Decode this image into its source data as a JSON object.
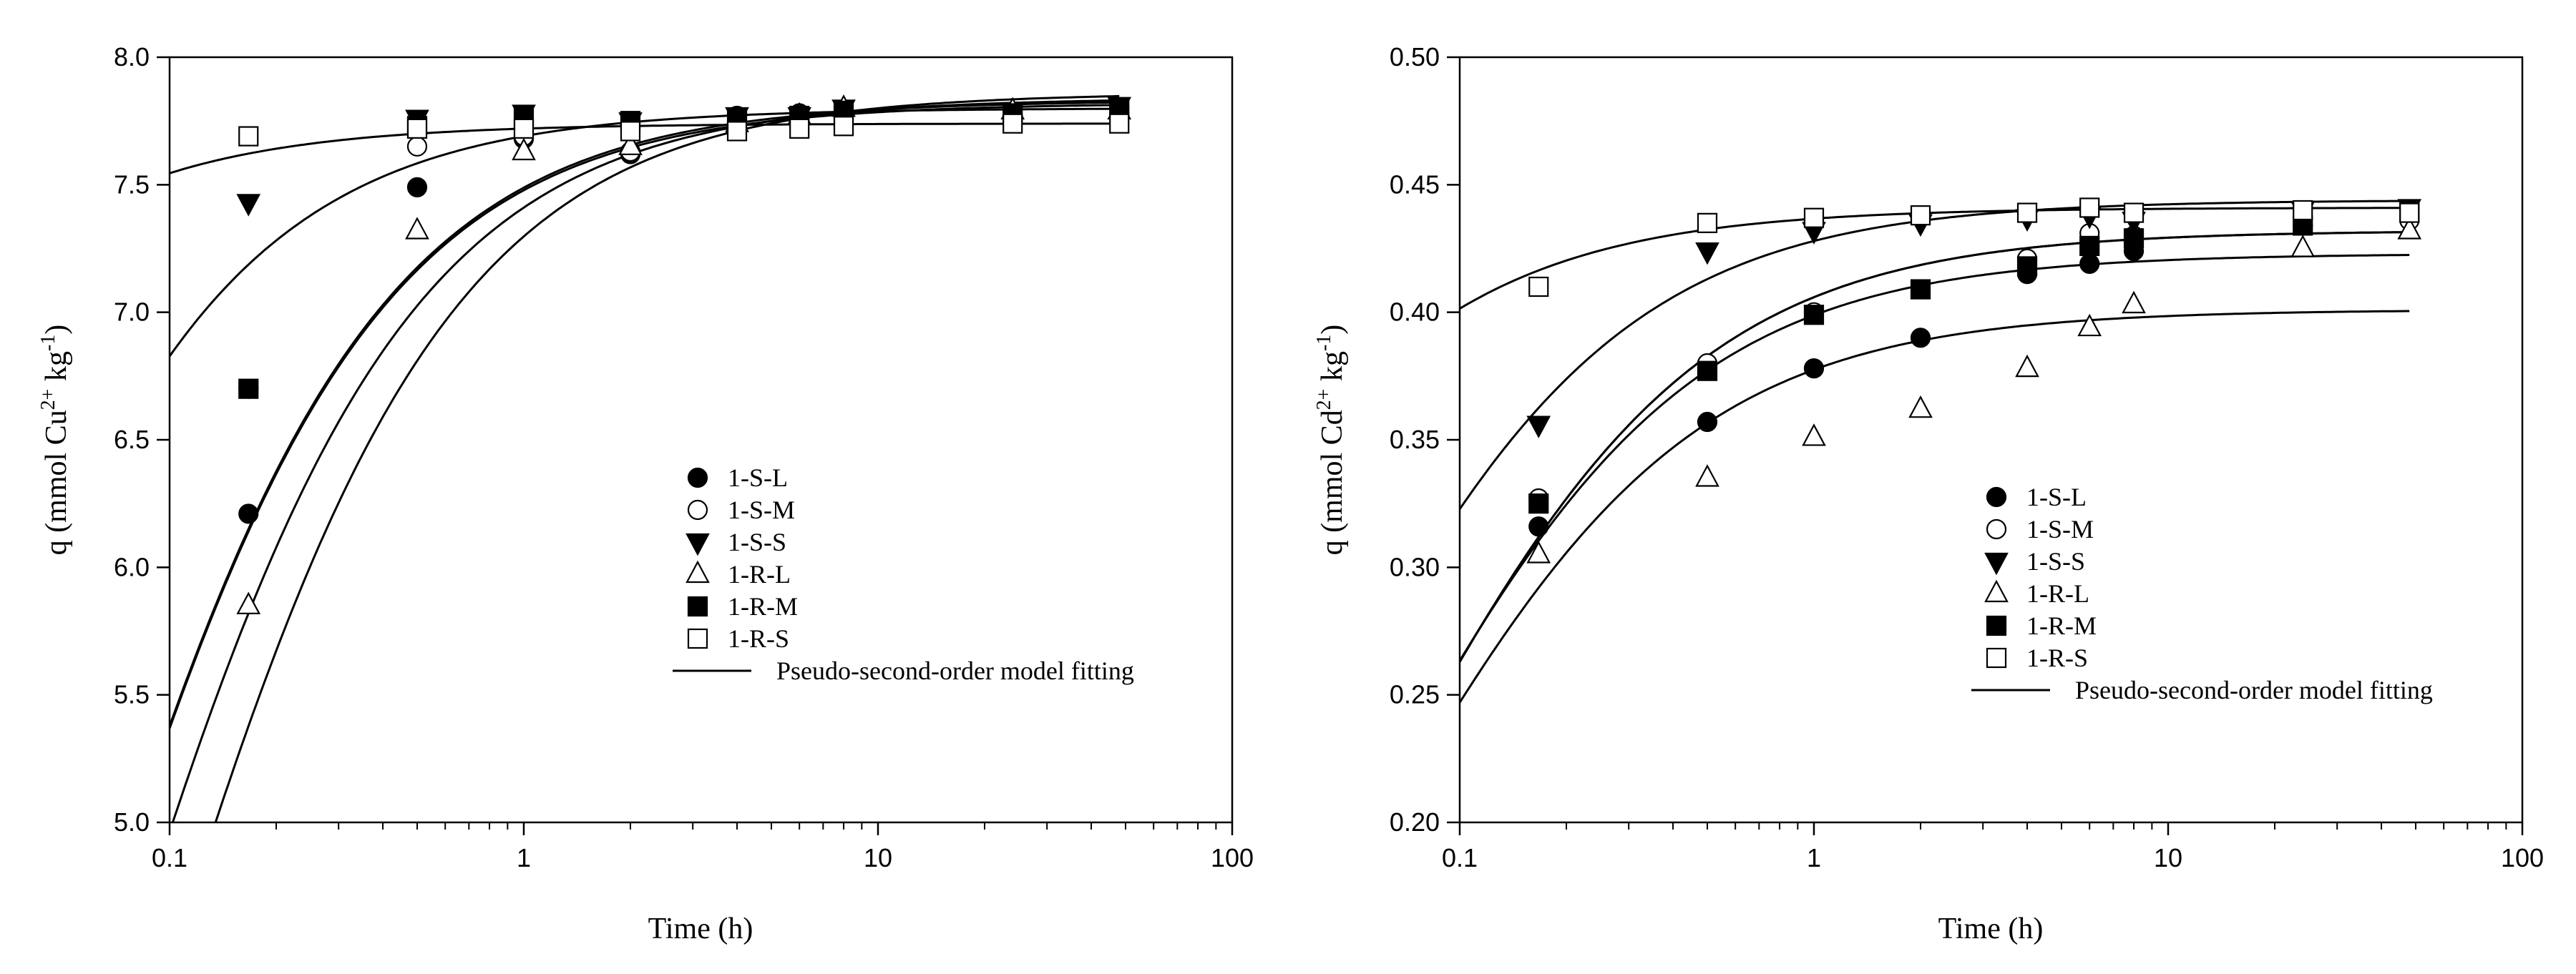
{
  "chart_data": [
    {
      "type": "scatter",
      "xscale": "log",
      "xlim": [
        0.1,
        100
      ],
      "ylim": [
        5.0,
        8.0
      ],
      "xticks": [
        0.1,
        1,
        10,
        100
      ],
      "xtick_labels": [
        "0.1",
        "1",
        "10",
        "100"
      ],
      "yticks": [
        5.0,
        5.5,
        6.0,
        6.5,
        7.0,
        7.5,
        8.0
      ],
      "ytick_labels": [
        "5.0",
        "5.5",
        "6.0",
        "6.5",
        "7.0",
        "7.5",
        "8.0"
      ],
      "xlabel": "Time (h)",
      "ylabel": {
        "pre": "q (mmol Cu",
        "sup1": "2+",
        "mid": " kg",
        "sup2": "-1",
        "post": ")"
      },
      "legend_position": "lower-middle",
      "series": [
        {
          "name": "1-S-L",
          "marker": "filled-circle",
          "x": [
            0.167,
            0.5,
            1,
            2,
            4,
            6,
            8,
            24,
            48
          ],
          "y": [
            6.21,
            7.49,
            7.68,
            7.62,
            7.77,
            7.78,
            7.79,
            7.77,
            7.78
          ],
          "fit": {
            "qe": 7.84,
            "k": 2.2
          }
        },
        {
          "name": "1-S-M",
          "marker": "open-circle",
          "x": [
            0.167,
            0.5,
            1,
            2,
            4,
            6,
            8,
            24,
            48
          ],
          "y": [
            6.7,
            7.65,
            7.69,
            7.63,
            7.75,
            7.76,
            7.79,
            7.77,
            7.8
          ],
          "fit": {
            "qe": 7.82,
            "k": 2.8
          }
        },
        {
          "name": "1-S-S",
          "marker": "filled-triangle-down",
          "x": [
            0.167,
            0.5,
            1,
            2,
            4,
            6,
            8,
            24,
            48
          ],
          "y": [
            7.43,
            7.76,
            7.78,
            7.75,
            7.77,
            7.77,
            7.8,
            7.79,
            7.81
          ],
          "fit": {
            "qe": 7.8,
            "k": 9.0
          }
        },
        {
          "name": "1-R-L",
          "marker": "open-triangle-up",
          "x": [
            0.167,
            0.5,
            1,
            2,
            4,
            6,
            8,
            24,
            48
          ],
          "y": [
            5.85,
            7.32,
            7.63,
            7.65,
            7.74,
            7.77,
            7.8,
            7.79,
            7.79
          ],
          "fit": {
            "qe": 7.86,
            "k": 1.65
          }
        },
        {
          "name": "1-R-M",
          "marker": "filled-square",
          "x": [
            0.167,
            0.5,
            1,
            2,
            4,
            6,
            8,
            24,
            48
          ],
          "y": [
            6.7,
            7.73,
            7.76,
            7.75,
            7.76,
            7.77,
            7.79,
            7.78,
            7.8
          ],
          "fit": {
            "qe": 7.83,
            "k": 2.8
          }
        },
        {
          "name": "1-R-S",
          "marker": "open-square",
          "x": [
            0.167,
            0.5,
            1,
            2,
            4,
            6,
            8,
            24,
            48
          ],
          "y": [
            7.69,
            7.72,
            7.72,
            7.71,
            7.71,
            7.72,
            7.73,
            7.74,
            7.74
          ],
          "fit": {
            "qe": 7.74,
            "k": 50
          }
        }
      ],
      "fit_legend": "Pseudo-second-order model fitting"
    },
    {
      "type": "scatter",
      "xscale": "log",
      "xlim": [
        0.1,
        100
      ],
      "ylim": [
        0.2,
        0.5
      ],
      "xticks": [
        0.1,
        1,
        10,
        100
      ],
      "xtick_labels": [
        "0.1",
        "1",
        "10",
        "100"
      ],
      "yticks": [
        0.2,
        0.25,
        0.3,
        0.35,
        0.4,
        0.45,
        0.5
      ],
      "ytick_labels": [
        "0.20",
        "0.25",
        "0.30",
        "0.35",
        "0.40",
        "0.45",
        "0.50"
      ],
      "xlabel": "Time (h)",
      "ylabel": {
        "pre": "q (mmol Cd",
        "sup1": "2+",
        "mid": " kg",
        "sup2": "-1",
        "post": ")"
      },
      "legend_position": "lower-middle",
      "series": [
        {
          "name": "1-S-L",
          "marker": "filled-circle",
          "x": [
            0.167,
            0.5,
            1,
            2,
            4,
            6,
            8,
            24,
            48
          ],
          "y": [
            0.316,
            0.357,
            0.378,
            0.39,
            0.415,
            0.419,
            0.424,
            0.434,
            0.437
          ],
          "fit": {
            "qe": 0.432,
            "k": 36
          }
        },
        {
          "name": "1-S-M",
          "marker": "open-circle",
          "x": [
            0.167,
            0.5,
            1,
            2,
            4,
            6,
            8,
            24,
            48
          ],
          "y": [
            0.327,
            0.38,
            0.4,
            0.409,
            0.421,
            0.431,
            0.43,
            0.434,
            0.436
          ],
          "fit": {
            "qe": 0.432,
            "k": 36
          }
        },
        {
          "name": "1-S-S",
          "marker": "filled-triangle-down",
          "x": [
            0.167,
            0.5,
            1,
            2,
            4,
            6,
            8,
            24,
            48
          ],
          "y": [
            0.356,
            0.424,
            0.432,
            0.435,
            0.437,
            0.438,
            0.436,
            0.44,
            0.441
          ],
          "fit": {
            "qe": 0.444,
            "k": 60
          }
        },
        {
          "name": "1-R-L",
          "marker": "open-triangle-up",
          "x": [
            0.167,
            0.5,
            1,
            2,
            4,
            6,
            8,
            24,
            48
          ],
          "y": [
            0.305,
            0.335,
            0.351,
            0.362,
            0.378,
            0.394,
            0.403,
            0.425,
            0.432
          ],
          "fit": {
            "qe": 0.401,
            "k": 40
          }
        },
        {
          "name": "1-R-M",
          "marker": "filled-square",
          "x": [
            0.167,
            0.5,
            1,
            2,
            4,
            6,
            8,
            24,
            48
          ],
          "y": [
            0.325,
            0.377,
            0.399,
            0.409,
            0.418,
            0.426,
            0.429,
            0.434,
            0.44
          ],
          "fit": {
            "qe": 0.423,
            "k": 39
          }
        },
        {
          "name": "1-R-S",
          "marker": "open-square",
          "x": [
            0.167,
            0.5,
            1,
            2,
            4,
            6,
            8,
            24,
            48
          ],
          "y": [
            0.41,
            0.435,
            0.437,
            0.438,
            0.439,
            0.441,
            0.439,
            0.44,
            0.439
          ],
          "fit": {
            "qe": 0.441,
            "k": 230
          }
        }
      ],
      "fit_legend": "Pseudo-second-order model fitting"
    }
  ]
}
